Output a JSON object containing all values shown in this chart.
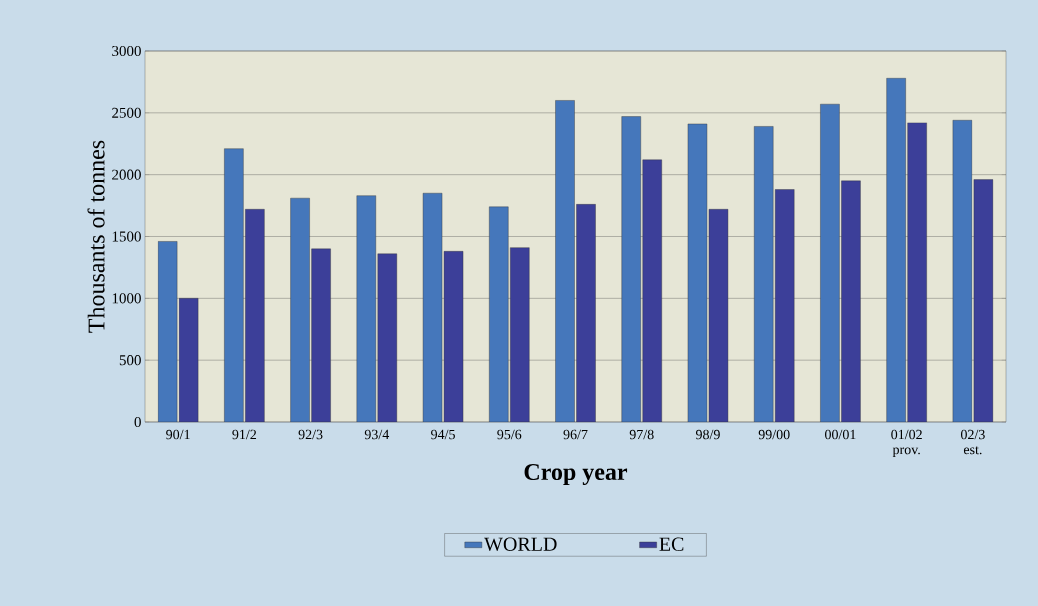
{
  "chart_data": {
    "type": "bar",
    "xlabel": "Crop year",
    "ylabel": "Thousants of tonnes",
    "categories": [
      "90/1",
      "91/2",
      "92/3",
      "93/4",
      "94/5",
      "95/6",
      "96/7",
      "97/8",
      "98/9",
      "99/00",
      "00/01",
      "01/02 prov.",
      "02/3 est."
    ],
    "series": [
      {
        "name": "WORLD",
        "color": "#4577bb",
        "values": [
          1460,
          2210,
          1810,
          1830,
          1850,
          1740,
          2600,
          2470,
          2410,
          2390,
          2570,
          2780,
          2440
        ]
      },
      {
        "name": "EC",
        "color": "#3c3f99",
        "values": [
          1000,
          1720,
          1400,
          1360,
          1380,
          1410,
          1760,
          2120,
          1720,
          1880,
          1950,
          2420,
          1960
        ]
      }
    ],
    "ylim": [
      0,
      3000
    ],
    "yticks": [
      0,
      500,
      1000,
      1500,
      2000,
      2500,
      3000
    ],
    "grid": "y",
    "legend": "bottom"
  }
}
